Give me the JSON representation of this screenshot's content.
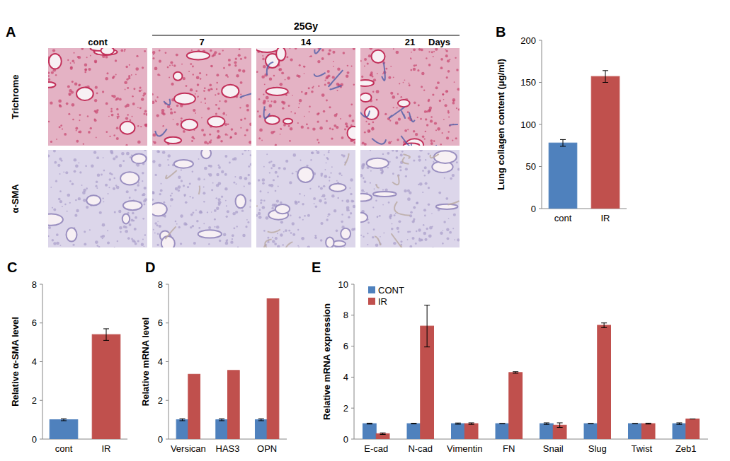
{
  "histology": {
    "panel": "A",
    "header": "25Gy",
    "columns": [
      "cont",
      "7",
      "14",
      "21"
    ],
    "column_unit": "Days",
    "rows": [
      "Trichrome",
      "α-SMA"
    ]
  },
  "chart_data": [
    {
      "type": "bar",
      "panel": "B",
      "ylabel": "Lung collagen content (μg/ml)",
      "categories": [
        "cont",
        "IR"
      ],
      "values": [
        78,
        157
      ],
      "errors": [
        4,
        7
      ],
      "colors": [
        "#4f81bd",
        "#c0504d"
      ],
      "ylim": [
        0,
        200
      ],
      "yticks": [
        0,
        50,
        100,
        150,
        200
      ]
    },
    {
      "type": "bar",
      "panel": "C",
      "ylabel": "Relative α-SMA level",
      "categories": [
        "cont",
        "IR"
      ],
      "values": [
        1.0,
        5.4
      ],
      "errors": [
        0.05,
        0.3
      ],
      "colors": [
        "#4f81bd",
        "#c0504d"
      ],
      "ylim": [
        0,
        8
      ],
      "yticks": [
        0,
        2,
        4,
        6,
        8
      ]
    },
    {
      "type": "bar",
      "panel": "D",
      "ylabel": "Relative mRNA level",
      "categories": [
        "Versican",
        "HAS3",
        "OPN"
      ],
      "series": [
        {
          "color": "#4f81bd",
          "values": [
            1,
            1,
            1
          ],
          "errors": [
            0.05,
            0.05,
            0.05
          ]
        },
        {
          "color": "#c0504d",
          "values": [
            3.35,
            3.55,
            7.25
          ]
        }
      ],
      "ylim": [
        0,
        8
      ],
      "yticks": [
        0,
        2,
        4,
        6,
        8
      ]
    },
    {
      "type": "bar",
      "panel": "E",
      "ylabel": "Relative mRNA expression",
      "categories": [
        "E-cad",
        "N-cad",
        "Vimentin",
        "FN",
        "Snail",
        "Slug",
        "Twist",
        "Zeb1"
      ],
      "series": [
        {
          "name": "CONT",
          "color": "#4f81bd",
          "values": [
            1,
            1,
            1,
            1,
            1,
            1,
            1,
            1
          ],
          "errors": [
            0.03,
            0.02,
            0.04,
            0,
            0.05,
            0,
            0,
            0.05
          ]
        },
        {
          "name": "IR",
          "color": "#c0504d",
          "values": [
            0.35,
            7.3,
            1.0,
            4.3,
            0.9,
            7.35,
            1.0,
            1.3
          ],
          "errors": [
            0.05,
            1.35,
            0.05,
            0.05,
            0.15,
            0.15,
            0.03,
            0
          ]
        }
      ],
      "ylim": [
        0,
        10
      ],
      "yticks": [
        0,
        2,
        4,
        6,
        8,
        10
      ],
      "legend": "upper left"
    }
  ]
}
